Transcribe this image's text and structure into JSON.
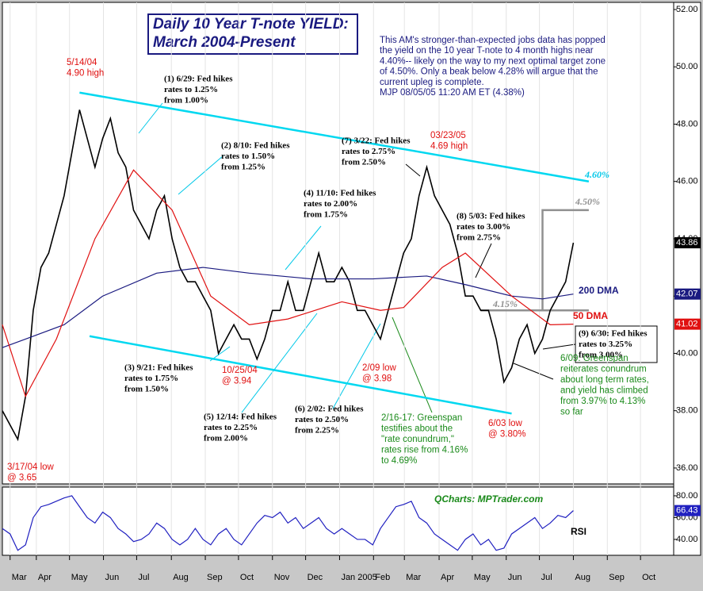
{
  "chart_data": [
    {
      "type": "line",
      "title": [
        "Daily 10 Year T-note YIELD:",
        "March 2004-Present"
      ],
      "commentary": [
        "This AM's stronger-than-expected jobs data has popped",
        "the yield on the 10 year T-note to 4 month highs near",
        "4.40%-- likely on the way to my next optimal target zone",
        "of 4.50%. Only a beak below 4.28% will argue that the",
        "current upleg is complete.",
        "MJP 08/05/05  11:20 AM ET (4.38%)"
      ],
      "xlim": [
        0,
        87
      ],
      "ylim": [
        35.5,
        52
      ],
      "yticks": [
        {
          "value": 36,
          "label": "36.00"
        },
        {
          "value": 38,
          "label": "38.00"
        },
        {
          "value": 40,
          "label": "40.00"
        },
        {
          "value": 42,
          "label": "42.00"
        },
        {
          "value": 44,
          "label": "44.00"
        },
        {
          "value": 46,
          "label": "46.00"
        },
        {
          "value": 48,
          "label": "48.00"
        },
        {
          "value": 50,
          "label": "50.00"
        },
        {
          "value": 52,
          "label": "52.00"
        }
      ],
      "xticks": [
        {
          "value": 1,
          "label": "Mar"
        },
        {
          "value": 4.4,
          "label": "Apr"
        },
        {
          "value": 8.7,
          "label": "May"
        },
        {
          "value": 13.1,
          "label": "Jun"
        },
        {
          "value": 17.4,
          "label": "Jul"
        },
        {
          "value": 21.9,
          "label": "Aug"
        },
        {
          "value": 26.3,
          "label": "Sep"
        },
        {
          "value": 30.6,
          "label": "Oct"
        },
        {
          "value": 35,
          "label": "Nov"
        },
        {
          "value": 39.3,
          "label": "Dec"
        },
        {
          "value": 43.7,
          "label": "Jan 2005"
        },
        {
          "value": 48.1,
          "label": "Feb"
        },
        {
          "value": 52.1,
          "label": "Mar"
        },
        {
          "value": 56.6,
          "label": "Apr"
        },
        {
          "value": 60.9,
          "label": "May"
        },
        {
          "value": 65.3,
          "label": "Jun"
        },
        {
          "value": 69.6,
          "label": "Jul"
        },
        {
          "value": 74,
          "label": "Aug"
        },
        {
          "value": 78.4,
          "label": "Sep"
        },
        {
          "value": 82.7,
          "label": "Oct"
        }
      ],
      "series": [
        {
          "color": "#000000",
          "x": [
            0,
            1,
            2,
            3,
            4,
            5,
            6,
            7,
            8,
            9,
            10,
            11,
            12,
            13,
            14,
            15,
            16,
            17,
            18,
            19,
            20,
            21,
            22,
            23,
            24,
            25,
            26,
            27,
            28,
            29,
            30,
            31,
            32,
            33,
            34,
            35,
            36,
            37,
            38,
            39,
            40,
            41,
            42,
            43,
            44,
            45,
            46,
            47,
            48,
            49,
            50,
            51,
            52,
            53,
            54,
            55,
            56,
            57,
            58,
            59,
            60,
            61,
            62,
            63,
            64,
            65,
            66,
            67,
            68,
            69,
            70,
            71,
            72,
            73,
            74
          ],
          "values": [
            38,
            37.5,
            37,
            38.5,
            41.5,
            43,
            43.5,
            44.5,
            45.5,
            47,
            48.5,
            47.5,
            46.5,
            47.5,
            48.2,
            47,
            46.5,
            45,
            44.5,
            44,
            45,
            45.5,
            44,
            43,
            42.5,
            42.5,
            42,
            41.5,
            40,
            40.5,
            41,
            40.5,
            40.5,
            39.8,
            40.5,
            41.5,
            41.5,
            42.5,
            41.5,
            41.5,
            42.5,
            43.5,
            42.5,
            42.5,
            43,
            42.5,
            41.5,
            41.5,
            41,
            40.5,
            41.5,
            42.5,
            43.5,
            44,
            45.5,
            46.5,
            45.5,
            45,
            44.5,
            43.5,
            42,
            42,
            41.5,
            41.5,
            40.5,
            39,
            39.5,
            40.5,
            41,
            40,
            40.5,
            41.5,
            42,
            42.5,
            43.86
          ]
        },
        {
          "name": "200 DMA",
          "color": "#1a1a80",
          "x": [
            0,
            3,
            8,
            13,
            20,
            26,
            32,
            40,
            48,
            55,
            60,
            66,
            70,
            74
          ],
          "values": [
            40.2,
            40.5,
            41,
            42,
            42.8,
            43,
            42.8,
            42.6,
            42.6,
            42.7,
            42.4,
            42,
            41.9,
            42.07
          ]
        },
        {
          "name": "50 DMA",
          "color": "#e01010",
          "x": [
            0,
            3,
            7,
            12,
            17,
            22,
            27,
            32,
            37,
            44,
            49,
            52,
            57,
            60,
            66,
            71,
            74
          ],
          "values": [
            41,
            38.5,
            40.5,
            44,
            46.4,
            45,
            42,
            41,
            41.2,
            41.8,
            41.5,
            41.6,
            43,
            43.5,
            42,
            41,
            41.02
          ]
        }
      ],
      "trendlines": [
        {
          "color": "#00d8f0",
          "x": [
            10,
            76
          ],
          "values": [
            49.1,
            46
          ]
        },
        {
          "color": "#00d8f0",
          "x": [
            11.3,
            66
          ],
          "values": [
            40.6,
            37.9
          ]
        },
        {
          "color": "#909090",
          "x": [
            62,
            76
          ],
          "values": [
            41.5,
            41.5
          ]
        },
        {
          "color": "#909090",
          "x": [
            70,
            70,
            76
          ],
          "values": [
            41.5,
            45,
            45
          ]
        }
      ],
      "annotations": [
        {
          "color": "#e01010",
          "lines": [
            "5/14/04",
            "4.90 high"
          ]
        },
        {
          "color": "#000000",
          "lines": [
            "(1) 6/29: Fed hikes",
            "rates to 1.25%",
            "from 1.00%"
          ]
        },
        {
          "color": "#000000",
          "lines": [
            "(2) 8/10: Fed hikes",
            "rates to 1.50%",
            "from 1.25%"
          ]
        },
        {
          "color": "#000000",
          "lines": [
            "(3) 9/21: Fed hikes",
            "rates to 1.75%",
            "from 1.50%"
          ]
        },
        {
          "color": "#e01010",
          "lines": [
            "10/25/04",
            "@ 3.94"
          ]
        },
        {
          "color": "#000000",
          "lines": [
            "(4) 11/10: Fed hikes",
            "rates to 2.00%",
            "from 1.75%"
          ]
        },
        {
          "color": "#000000",
          "lines": [
            "(5) 12/14: Fed hikes",
            "rates to 2.25%",
            "from 2.00%"
          ]
        },
        {
          "color": "#000000",
          "lines": [
            "(6) 2/02: Fed hikes",
            "rates to 2.50%",
            "from 2.25%"
          ]
        },
        {
          "color": "#000000",
          "lines": [
            "(7) 3/22: Fed hikes",
            "rates to 2.75%",
            "from 2.50%"
          ]
        },
        {
          "color": "#e01010",
          "lines": [
            "03/23/05",
            "4.69 high"
          ]
        },
        {
          "color": "#e01010",
          "lines": [
            "2/09 low",
            "@ 3.98"
          ]
        },
        {
          "color": "#000000",
          "lines": [
            "(8) 5/03: Fed hikes",
            "rates to 3.00%",
            "from 2.75%"
          ]
        },
        {
          "color": "#1a8a1a",
          "lines": [
            "2/16-17: Greenspan",
            "testifies about the",
            "\"rate conundrum,\"",
            "rates rise from 4.16%",
            "to 4.69%"
          ]
        },
        {
          "color": "#e01010",
          "lines": [
            "6/03 low",
            "@ 3.80%"
          ]
        },
        {
          "color": "#e01010",
          "lines": [
            "3/17/04 low",
            "@ 3.65"
          ]
        },
        {
          "color": "#000000",
          "lines": [
            "(9) 6/30: Fed hikes",
            "rates to 3.25%",
            "from 3.00%"
          ]
        },
        {
          "color": "#1a8a1a",
          "lines": [
            "6/09: Greenspan",
            "reiterates conundrum",
            "about long term rates,",
            "and yield has climbed",
            "from 3.97% to 4.13%",
            "so far"
          ]
        },
        {
          "color": "#00c8e8",
          "lines": [
            "4.60%"
          ]
        },
        {
          "color": "#909090",
          "lines": [
            "4.50%"
          ]
        },
        {
          "color": "#909090",
          "lines": [
            "4.15%"
          ]
        }
      ]
    },
    {
      "type": "line",
      "source": "QCharts: MPTrader.com",
      "xlim": [
        0,
        87
      ],
      "ylim": [
        27.6,
        85.8
      ],
      "yticks": [
        {
          "value": 40,
          "label": "40.00"
        },
        {
          "value": 60,
          "label": "60.00"
        },
        {
          "value": 80,
          "label": "80.00"
        }
      ],
      "series": [
        {
          "name": "RSI",
          "color": "#2020c0",
          "x": [
            0,
            1,
            2,
            3,
            4,
            5,
            6,
            7,
            8,
            9,
            10,
            11,
            12,
            13,
            14,
            15,
            16,
            17,
            18,
            19,
            20,
            21,
            22,
            23,
            24,
            25,
            26,
            27,
            28,
            29,
            30,
            31,
            32,
            33,
            34,
            35,
            36,
            37,
            38,
            39,
            40,
            41,
            42,
            43,
            44,
            45,
            46,
            47,
            48,
            49,
            50,
            51,
            52,
            53,
            54,
            55,
            56,
            57,
            58,
            59,
            60,
            61,
            62,
            63,
            64,
            65,
            66,
            67,
            68,
            69,
            70,
            71,
            72,
            73,
            74
          ],
          "values": [
            50,
            45,
            30,
            35,
            60,
            70,
            72,
            75,
            78,
            80,
            70,
            60,
            55,
            65,
            60,
            50,
            45,
            38,
            40,
            45,
            55,
            50,
            40,
            35,
            40,
            50,
            40,
            35,
            45,
            50,
            40,
            35,
            45,
            55,
            62,
            60,
            65,
            55,
            60,
            50,
            55,
            60,
            50,
            45,
            50,
            45,
            40,
            40,
            35,
            50,
            60,
            70,
            72,
            75,
            60,
            55,
            45,
            40,
            35,
            30,
            40,
            45,
            35,
            40,
            30,
            32,
            45,
            50,
            55,
            60,
            50,
            55,
            62,
            60,
            66.43
          ]
        }
      ]
    }
  ]
}
